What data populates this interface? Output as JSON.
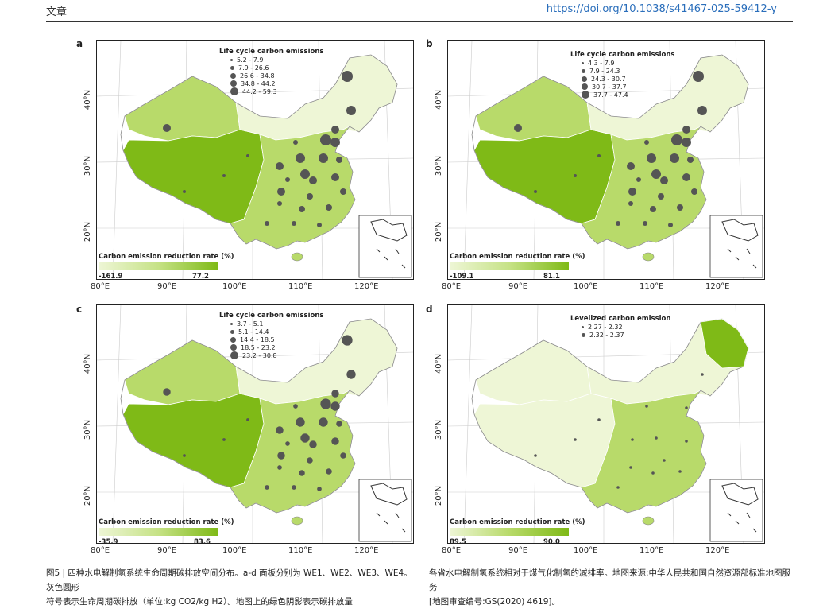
{
  "header": {
    "left": "文章",
    "right": "https://doi.org/10.1038/s41467-025-59412-y"
  },
  "panels": [
    {
      "label": "a",
      "legend_title": "Life cycle carbon emissions",
      "legend_items": [
        "5.2 - 7.9",
        "7.9 - 26.6",
        "26.6 - 34.8",
        "34.8 - 44.2",
        "44.2 - 59.3"
      ],
      "colorbar_title": "Carbon emission reduction rate (%)",
      "colorbar_min": "-161.9",
      "colorbar_max": "77.2"
    },
    {
      "label": "b",
      "legend_title": "Life cycle carbon emissions",
      "legend_items": [
        "4.3 - 7.9",
        "7.9 - 24.3",
        "24.3 - 30.7",
        "30.7 - 37.7",
        "37.7 - 47.4"
      ],
      "colorbar_title": "Carbon emission reduction rate (%)",
      "colorbar_min": "-109.1",
      "colorbar_max": "81.1"
    },
    {
      "label": "c",
      "legend_title": "Life cycle carbon emissions",
      "legend_items": [
        "3.7 - 5.1",
        "5.1 - 14.4",
        "14.4 - 18.5",
        "18.5 - 23.2",
        "23.2 - 30.8"
      ],
      "colorbar_title": "Carbon emission reduction rate (%)",
      "colorbar_min": "-35.9",
      "colorbar_max": "83.6"
    },
    {
      "label": "d",
      "legend_title": "Levelized carbon emission",
      "legend_items": [
        "2.27 - 2.32",
        "2.32 - 2.37"
      ],
      "colorbar_title": "Carbon emission reduction rate (%)",
      "colorbar_min": "89.5",
      "colorbar_max": "90.0"
    }
  ],
  "axes": {
    "x_ticks": [
      "80°E",
      "90°E",
      "100°E",
      "110°E",
      "120°E"
    ],
    "y_ticks": [
      "40°N",
      "30°N",
      "20°N"
    ]
  },
  "colors": {
    "light": "#eef6d6",
    "mid": "#b8da6a",
    "dark": "#7fba17",
    "dot": "#555555"
  },
  "caption": {
    "left_line1": "图5 | 四种水电解制氢系统生命周期碳排放空间分布。a-d 面板分别为 WE1、WE2、WE3、WE4。灰色圆形",
    "left_line2": "符号表示生命周期碳排放（单位:kg CO2/kg H2）。地图上的绿色阴影表示碳排放量",
    "right_line1": "各省水电解制氢系统相对于煤气化制氢的减排率。地图来源:中华人民共和国自然资源部标准地图服务",
    "right_line2": "[地图审查编号:GS(2020) 4619]。"
  }
}
